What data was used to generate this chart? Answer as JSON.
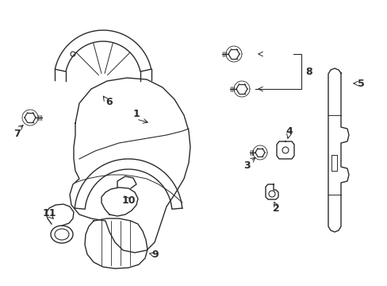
{
  "bg_color": "#ffffff",
  "line_color": "#2a2a2a",
  "label_color": "#000000",
  "lw": 1.0,
  "figsize": [
    4.89,
    3.6
  ],
  "dpi": 100
}
